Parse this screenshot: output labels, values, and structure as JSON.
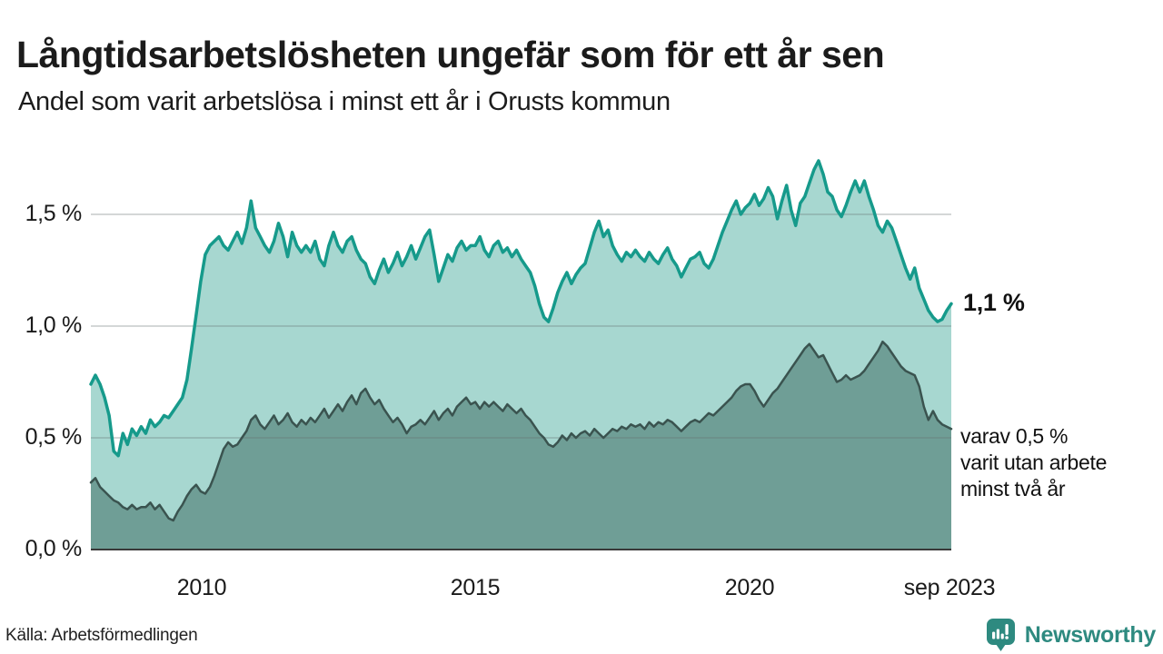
{
  "header": {
    "title": "Långtidsarbetslösheten ungefär som för ett år sen",
    "subtitle": "Andel som varit arbetslösa i minst ett år i Orusts kommun"
  },
  "annotations": {
    "latest_value_label": "1,1 %",
    "secondary_label": "varav 0,5 %\nvarit utan arbete\nminst två år"
  },
  "footer": {
    "source": "Källa: Arbetsförmedlingen",
    "brand": "Newsworthy"
  },
  "colors": {
    "series1_line": "#169a8b",
    "series1_fill": "#a7d7d0",
    "series2_line": "#3a534f",
    "series2_fill": "#6f9e96",
    "gridline": "rgba(100,110,112,0.28)",
    "baseline": "#3a3a3a",
    "brand_teal": "#2e8a80",
    "text": "#1a1a1a"
  },
  "chart_data": {
    "type": "area",
    "title": "Långtidsarbetslösheten ungefär som för ett år sen",
    "subtitle": "Andel som varit arbetslösa i minst ett år i Orusts kommun",
    "x_start": "2008-01",
    "x_end": "2023-09",
    "x_frequency": "monthly",
    "ylim": [
      0,
      1.77
    ],
    "grid_values": [
      0.5,
      1.0,
      1.5
    ],
    "y_ticks": [
      {
        "label": "0,0 %",
        "value": 0.0
      },
      {
        "label": "0,5 %",
        "value": 0.5
      },
      {
        "label": "1,0 %",
        "value": 1.0
      },
      {
        "label": "1,5 %",
        "value": 1.5
      }
    ],
    "x_ticks": [
      {
        "label": "2010"
      },
      {
        "label": "2015"
      },
      {
        "label": "2020"
      },
      {
        "label": "sep 2023"
      }
    ],
    "series": [
      {
        "name": "Andel arbetslösa minst ett år",
        "end_value": 1.1,
        "end_label": "1,1 %",
        "values": [
          0.74,
          0.78,
          0.74,
          0.68,
          0.6,
          0.44,
          0.42,
          0.52,
          0.47,
          0.54,
          0.51,
          0.55,
          0.52,
          0.58,
          0.55,
          0.57,
          0.6,
          0.59,
          0.62,
          0.65,
          0.68,
          0.76,
          0.9,
          1.05,
          1.2,
          1.32,
          1.36,
          1.38,
          1.4,
          1.36,
          1.34,
          1.38,
          1.42,
          1.37,
          1.44,
          1.56,
          1.44,
          1.4,
          1.36,
          1.33,
          1.38,
          1.46,
          1.4,
          1.31,
          1.42,
          1.36,
          1.33,
          1.36,
          1.33,
          1.38,
          1.3,
          1.27,
          1.36,
          1.42,
          1.36,
          1.33,
          1.38,
          1.4,
          1.34,
          1.3,
          1.28,
          1.22,
          1.19,
          1.25,
          1.3,
          1.24,
          1.28,
          1.33,
          1.27,
          1.31,
          1.36,
          1.3,
          1.35,
          1.4,
          1.43,
          1.32,
          1.2,
          1.26,
          1.32,
          1.29,
          1.35,
          1.38,
          1.34,
          1.36,
          1.36,
          1.4,
          1.34,
          1.31,
          1.36,
          1.38,
          1.33,
          1.35,
          1.31,
          1.34,
          1.3,
          1.27,
          1.24,
          1.18,
          1.1,
          1.04,
          1.02,
          1.08,
          1.15,
          1.2,
          1.24,
          1.19,
          1.23,
          1.26,
          1.28,
          1.35,
          1.42,
          1.47,
          1.4,
          1.43,
          1.36,
          1.32,
          1.29,
          1.33,
          1.31,
          1.34,
          1.31,
          1.29,
          1.33,
          1.3,
          1.28,
          1.32,
          1.35,
          1.3,
          1.27,
          1.22,
          1.26,
          1.3,
          1.31,
          1.33,
          1.28,
          1.26,
          1.3,
          1.36,
          1.42,
          1.47,
          1.52,
          1.56,
          1.5,
          1.53,
          1.55,
          1.59,
          1.54,
          1.57,
          1.62,
          1.58,
          1.48,
          1.56,
          1.63,
          1.52,
          1.45,
          1.55,
          1.58,
          1.64,
          1.7,
          1.74,
          1.68,
          1.6,
          1.58,
          1.52,
          1.49,
          1.54,
          1.6,
          1.65,
          1.6,
          1.65,
          1.58,
          1.52,
          1.45,
          1.42,
          1.47,
          1.44,
          1.38,
          1.32,
          1.26,
          1.21,
          1.26,
          1.17,
          1.12,
          1.07,
          1.04,
          1.02,
          1.03,
          1.07,
          1.1
        ]
      },
      {
        "name": "varav utan arbete minst två år",
        "end_value": 0.5,
        "end_label": "varav 0,5 % varit utan arbete minst två år",
        "values": [
          0.3,
          0.32,
          0.28,
          0.26,
          0.24,
          0.22,
          0.21,
          0.19,
          0.18,
          0.2,
          0.18,
          0.19,
          0.19,
          0.21,
          0.18,
          0.2,
          0.17,
          0.14,
          0.13,
          0.17,
          0.2,
          0.24,
          0.27,
          0.29,
          0.26,
          0.25,
          0.28,
          0.33,
          0.39,
          0.45,
          0.48,
          0.46,
          0.47,
          0.5,
          0.53,
          0.58,
          0.6,
          0.56,
          0.54,
          0.57,
          0.6,
          0.56,
          0.58,
          0.61,
          0.57,
          0.55,
          0.58,
          0.56,
          0.59,
          0.57,
          0.6,
          0.63,
          0.59,
          0.62,
          0.65,
          0.62,
          0.66,
          0.69,
          0.65,
          0.7,
          0.72,
          0.68,
          0.65,
          0.67,
          0.63,
          0.6,
          0.57,
          0.59,
          0.56,
          0.52,
          0.55,
          0.56,
          0.58,
          0.56,
          0.59,
          0.62,
          0.58,
          0.61,
          0.63,
          0.6,
          0.64,
          0.66,
          0.68,
          0.65,
          0.66,
          0.63,
          0.66,
          0.64,
          0.66,
          0.64,
          0.62,
          0.65,
          0.63,
          0.61,
          0.63,
          0.6,
          0.58,
          0.55,
          0.52,
          0.5,
          0.47,
          0.46,
          0.48,
          0.51,
          0.49,
          0.52,
          0.5,
          0.52,
          0.53,
          0.51,
          0.54,
          0.52,
          0.5,
          0.52,
          0.54,
          0.53,
          0.55,
          0.54,
          0.56,
          0.55,
          0.56,
          0.54,
          0.57,
          0.55,
          0.57,
          0.56,
          0.58,
          0.57,
          0.55,
          0.53,
          0.55,
          0.57,
          0.58,
          0.57,
          0.59,
          0.61,
          0.6,
          0.62,
          0.64,
          0.66,
          0.68,
          0.71,
          0.73,
          0.74,
          0.74,
          0.71,
          0.67,
          0.64,
          0.67,
          0.7,
          0.72,
          0.75,
          0.78,
          0.81,
          0.84,
          0.87,
          0.9,
          0.92,
          0.89,
          0.86,
          0.87,
          0.83,
          0.79,
          0.75,
          0.76,
          0.78,
          0.76,
          0.77,
          0.78,
          0.8,
          0.83,
          0.86,
          0.89,
          0.93,
          0.91,
          0.88,
          0.85,
          0.82,
          0.8,
          0.79,
          0.78,
          0.73,
          0.64,
          0.58,
          0.62,
          0.58,
          0.56,
          0.55,
          0.54
        ]
      }
    ],
    "legend_position": "none",
    "grid": true
  }
}
